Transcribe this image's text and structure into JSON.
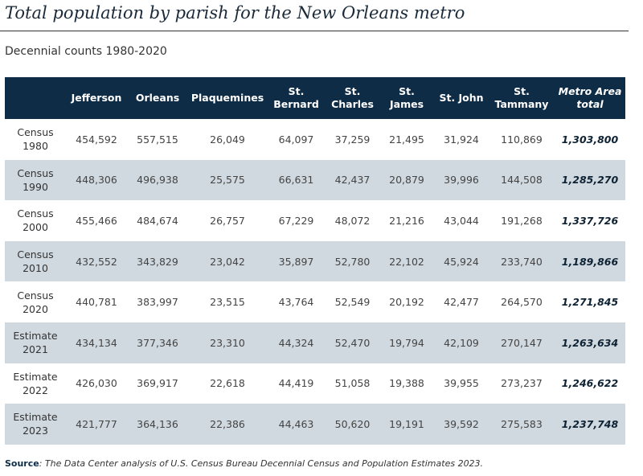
{
  "title": "Total population by parish for the New Orleans metro",
  "subtitle": "Decennial counts 1980-2020",
  "source_label": "Source",
  "source_text": ": The Data Center analysis of U.S. Census Bureau Decennial Census and Population Estimates 2023.",
  "colors": {
    "header_bg": "#0e2c46",
    "alt_row": "#d0d9e0"
  },
  "chart_data": {
    "type": "table",
    "title": "Total population by parish for the New Orleans metro",
    "subtitle": "Decennial counts 1980-2020",
    "columns": [
      [
        "",
        ""
      ],
      [
        "Jefferson",
        ""
      ],
      [
        "Orleans",
        ""
      ],
      [
        "Plaquemines",
        ""
      ],
      [
        "St.",
        "Bernard"
      ],
      [
        "St.",
        "Charles"
      ],
      [
        "St.",
        "James"
      ],
      [
        "St. John",
        ""
      ],
      [
        "St.",
        "Tammany"
      ],
      [
        "Metro Area",
        "total"
      ]
    ],
    "rows": [
      {
        "label": [
          "Census",
          "1980"
        ],
        "values": [
          "454,592",
          "557,515",
          "26,049",
          "64,097",
          "37,259",
          "21,495",
          "31,924",
          "110,869",
          "1,303,800"
        ]
      },
      {
        "label": [
          "Census",
          "1990"
        ],
        "values": [
          "448,306",
          "496,938",
          "25,575",
          "66,631",
          "42,437",
          "20,879",
          "39,996",
          "144,508",
          "1,285,270"
        ]
      },
      {
        "label": [
          "Census",
          "2000"
        ],
        "values": [
          "455,466",
          "484,674",
          "26,757",
          "67,229",
          "48,072",
          "21,216",
          "43,044",
          "191,268",
          "1,337,726"
        ]
      },
      {
        "label": [
          "Census",
          "2010"
        ],
        "values": [
          "432,552",
          "343,829",
          "23,042",
          "35,897",
          "52,780",
          "22,102",
          "45,924",
          "233,740",
          "1,189,866"
        ]
      },
      {
        "label": [
          "Census",
          "2020"
        ],
        "values": [
          "440,781",
          "383,997",
          "23,515",
          "43,764",
          "52,549",
          "20,192",
          "42,477",
          "264,570",
          "1,271,845"
        ]
      },
      {
        "label": [
          "Estimate",
          "2021"
        ],
        "values": [
          "434,134",
          "377,346",
          "23,310",
          "44,324",
          "52,470",
          "19,794",
          "42,109",
          "270,147",
          "1,263,634"
        ]
      },
      {
        "label": [
          "Estimate",
          "2022"
        ],
        "values": [
          "426,030",
          "369,917",
          "22,618",
          "44,419",
          "51,058",
          "19,388",
          "39,955",
          "273,237",
          "1,246,622"
        ]
      },
      {
        "label": [
          "Estimate",
          "2023"
        ],
        "values": [
          "421,777",
          "364,136",
          "22,386",
          "44,463",
          "50,620",
          "19,191",
          "39,592",
          "275,583",
          "1,237,748"
        ]
      }
    ]
  }
}
